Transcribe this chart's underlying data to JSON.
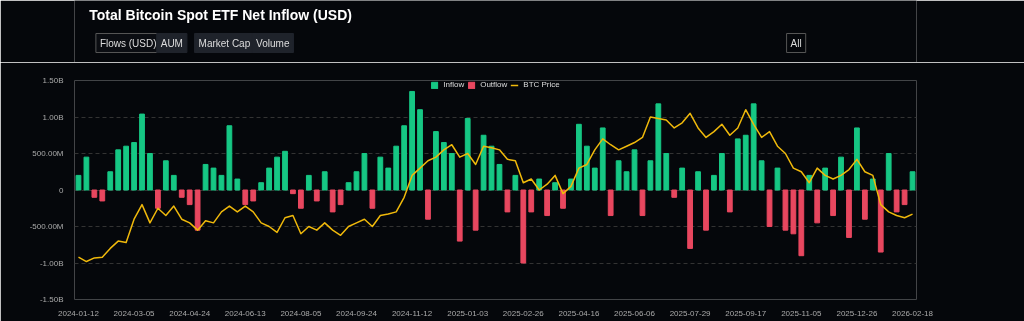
{
  "chart_data": {
    "type": "bar",
    "title": "Total Bitcoin Spot ETF Net Inflow (USD)",
    "annotations": [
      "Flows (USD)",
      "AUM",
      "Market Cap",
      "Volume",
      "All"
    ],
    "categories": [
      "2024-01-12",
      null,
      null,
      null,
      null,
      null,
      null,
      "2024-03-05",
      null,
      null,
      null,
      null,
      null,
      null,
      "2024-04-24",
      null,
      null,
      null,
      null,
      null,
      null,
      "2024-06-13",
      null,
      null,
      null,
      null,
      null,
      null,
      "2024-08-05",
      null,
      null,
      null,
      null,
      null,
      null,
      "2024-09-24",
      null,
      null,
      null,
      null,
      null,
      null,
      "2024-11-12",
      null,
      null,
      null,
      null,
      null,
      null,
      "2025-01-03",
      null,
      null,
      null,
      null,
      null,
      null,
      "2025-02-26",
      null,
      null,
      null,
      null,
      null,
      null,
      "2025-04-16",
      null,
      null,
      null,
      null,
      null,
      null,
      "2025-06-06",
      null,
      null,
      null,
      null,
      null,
      null,
      "2025-07-29",
      null,
      null,
      null,
      null,
      null,
      null,
      "2025-09-17",
      null,
      null,
      null,
      null,
      null,
      null,
      "2025-11-05",
      null,
      null,
      null,
      null,
      null,
      null,
      "2025-12-26",
      null,
      null,
      null,
      null,
      null,
      null,
      "2026-02-18"
    ],
    "series": [
      {
        "name": "Inflow",
        "color": "#16c784",
        "values": [
          200000000.0,
          450000000.0,
          null,
          null,
          250000000.0,
          550000000.0,
          600000000.0,
          650000000.0,
          1040000000.0,
          500000000.0,
          null,
          400000000.0,
          200000000.0,
          null,
          null,
          null,
          350000000.0,
          300000000.0,
          200000000.0,
          880000000.0,
          150000000.0,
          null,
          null,
          100000000.0,
          300000000.0,
          450000000.0,
          530000000.0,
          null,
          null,
          200000000.0,
          null,
          250000000.0,
          null,
          null,
          100000000.0,
          250000000.0,
          500000000.0,
          null,
          450000000.0,
          300000000.0,
          600000000.0,
          880000000.0,
          1350000000.0,
          1100000000.0,
          null,
          800000000.0,
          650000000.0,
          500000000.0,
          null,
          980000000.0,
          null,
          750000000.0,
          600000000.0,
          350000000.0,
          null,
          200000000.0,
          null,
          null,
          150000000.0,
          null,
          100000000.0,
          null,
          150000000.0,
          900000000.0,
          600000000.0,
          300000000.0,
          850000000.0,
          null,
          400000000.0,
          250000000.0,
          550000000.0,
          null,
          400000000.0,
          1180000000.0,
          500000000.0,
          null,
          300000000.0,
          null,
          250000000.0,
          null,
          200000000.0,
          500000000.0,
          null,
          700000000.0,
          750000000.0,
          1180000000.0,
          400000000.0,
          null,
          300000000.0,
          null,
          null,
          null,
          200000000.0,
          null,
          300000000.0,
          null,
          450000000.0,
          null,
          850000000.0,
          null,
          150000000.0,
          null,
          500000000.0,
          null,
          null,
          250000000.0
        ]
      },
      {
        "name": "Outflow",
        "color": "#e8475f",
        "values": [
          null,
          null,
          -100000000.0,
          -150000000.0,
          null,
          null,
          null,
          null,
          null,
          null,
          -250000000.0,
          null,
          null,
          -100000000.0,
          -200000000.0,
          -550000000.0,
          null,
          null,
          null,
          null,
          null,
          -200000000.0,
          -150000000.0,
          null,
          null,
          null,
          null,
          -50000000.0,
          -250000000.0,
          null,
          -150000000.0,
          null,
          -300000000.0,
          -200000000.0,
          null,
          null,
          null,
          -250000000.0,
          null,
          null,
          null,
          null,
          null,
          null,
          -400000000.0,
          null,
          null,
          null,
          -700000000.0,
          null,
          -550000000.0,
          null,
          null,
          null,
          -300000000.0,
          null,
          -1000000000.0,
          -300000000.0,
          null,
          -350000000.0,
          null,
          -250000000.0,
          null,
          null,
          null,
          null,
          null,
          -350000000.0,
          null,
          null,
          null,
          -350000000.0,
          null,
          null,
          null,
          -100000000.0,
          null,
          -800000000.0,
          null,
          -550000000.0,
          null,
          null,
          -300000000.0,
          null,
          null,
          null,
          null,
          -500000000.0,
          null,
          -550000000.0,
          -600000000.0,
          -900000000.0,
          null,
          -450000000.0,
          null,
          -350000000.0,
          null,
          -650000000.0,
          null,
          -400000000.0,
          null,
          -850000000.0,
          null,
          -300000000.0,
          -200000000.0,
          null
        ]
      },
      {
        "name": "BTC Price",
        "type": "line",
        "color": "#f0b90b",
        "values": [
          -920000000.0,
          -980000000.0,
          -930000000.0,
          -920000000.0,
          -800000000.0,
          -700000000.0,
          -720000000.0,
          -400000000.0,
          -200000000.0,
          -450000000.0,
          -250000000.0,
          -350000000.0,
          -220000000.0,
          -400000000.0,
          -450000000.0,
          -550000000.0,
          -420000000.0,
          -450000000.0,
          -300000000.0,
          -220000000.0,
          -300000000.0,
          -220000000.0,
          -300000000.0,
          -450000000.0,
          -500000000.0,
          -580000000.0,
          -380000000.0,
          -350000000.0,
          -600000000.0,
          -500000000.0,
          -550000000.0,
          -450000000.0,
          -550000000.0,
          -620000000.0,
          -500000000.0,
          -450000000.0,
          -400000000.0,
          -500000000.0,
          -350000000.0,
          -330000000.0,
          -300000000.0,
          -100000000.0,
          200000000.0,
          300000000.0,
          400000000.0,
          450000000.0,
          550000000.0,
          620000000.0,
          450000000.0,
          500000000.0,
          350000000.0,
          600000000.0,
          580000000.0,
          550000000.0,
          420000000.0,
          400000000.0,
          100000000.0,
          150000000.0,
          0,
          80000000.0,
          200000000.0,
          -50000000.0,
          50000000.0,
          300000000.0,
          350000000.0,
          550000000.0,
          700000000.0,
          620000000.0,
          550000000.0,
          600000000.0,
          650000000.0,
          720000000.0,
          1000000000.0,
          980000000.0,
          960000000.0,
          850000000.0,
          920000000.0,
          1050000000.0,
          850000000.0,
          720000000.0,
          800000000.0,
          900000000.0,
          750000000.0,
          850000000.0,
          1100000000.0,
          900000000.0,
          720000000.0,
          800000000.0,
          600000000.0,
          500000000.0,
          300000000.0,
          250000000.0,
          100000000.0,
          300000000.0,
          200000000.0,
          150000000.0,
          200000000.0,
          280000000.0,
          420000000.0,
          250000000.0,
          200000000.0,
          -200000000.0,
          -300000000.0,
          -350000000.0,
          -380000000.0,
          -330000000.0
        ]
      }
    ],
    "ylim": [
      -1500000000.0,
      1500000000.0
    ],
    "yticks": [
      {
        "value": 1500000000.0,
        "label": "1.50B"
      },
      {
        "value": 1000000000.0,
        "label": "1.00B"
      },
      {
        "value": 500000000.0,
        "label": "500.00M"
      },
      0,
      {
        "value": -500000000.0,
        "label": "-500.00M"
      },
      {
        "value": -1000000000.0,
        "label": "-1.00B"
      },
      {
        "value": -1500000000.0,
        "label": "-1.50B"
      }
    ],
    "grid": "y",
    "legend": "top"
  }
}
